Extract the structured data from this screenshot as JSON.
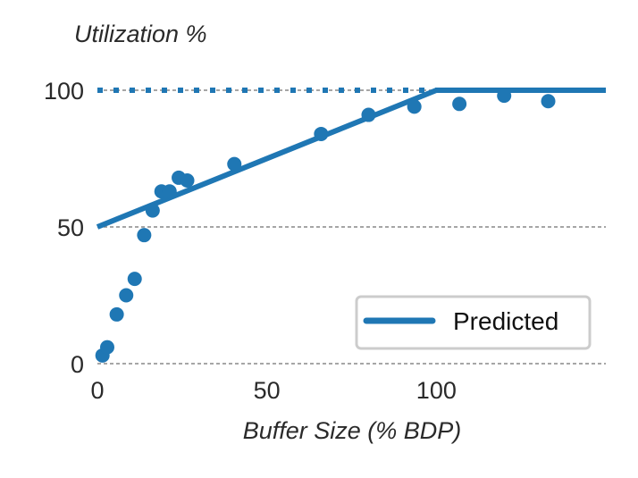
{
  "chart_data": {
    "type": "scatter",
    "ylabel": "Utilization %",
    "xlabel": "Buffer Size (% BDP)",
    "xlim": [
      0,
      150
    ],
    "ylim": [
      0,
      100
    ],
    "xticks": [
      0,
      50,
      100
    ],
    "yticks": [
      0,
      50,
      100
    ],
    "grid": "horizontal dashed",
    "legend": "bottom-right",
    "colors": {
      "series": "#1f77b4",
      "grid": "#888888",
      "legend_border": "#cccccc"
    },
    "series": [
      {
        "kind": "points",
        "x": [
          1.5,
          2.9,
          5.7,
          8.5,
          11.0,
          13.8,
          16.3,
          18.9,
          21.3,
          24.0,
          26.5,
          40.4,
          66.0,
          80.0,
          93.5,
          106.8,
          120.0,
          133.0
        ],
        "y": [
          3,
          6,
          18,
          25,
          31,
          47,
          56,
          63,
          63,
          68,
          67,
          73,
          84,
          91,
          94,
          95,
          98,
          96
        ]
      },
      {
        "name": "Predicted",
        "kind": "line",
        "x": [
          0,
          100,
          150
        ],
        "y": [
          50,
          100,
          100
        ]
      },
      {
        "kind": "reference",
        "style": "dotted",
        "x": [
          0,
          150
        ],
        "y": [
          100,
          100
        ]
      }
    ]
  }
}
